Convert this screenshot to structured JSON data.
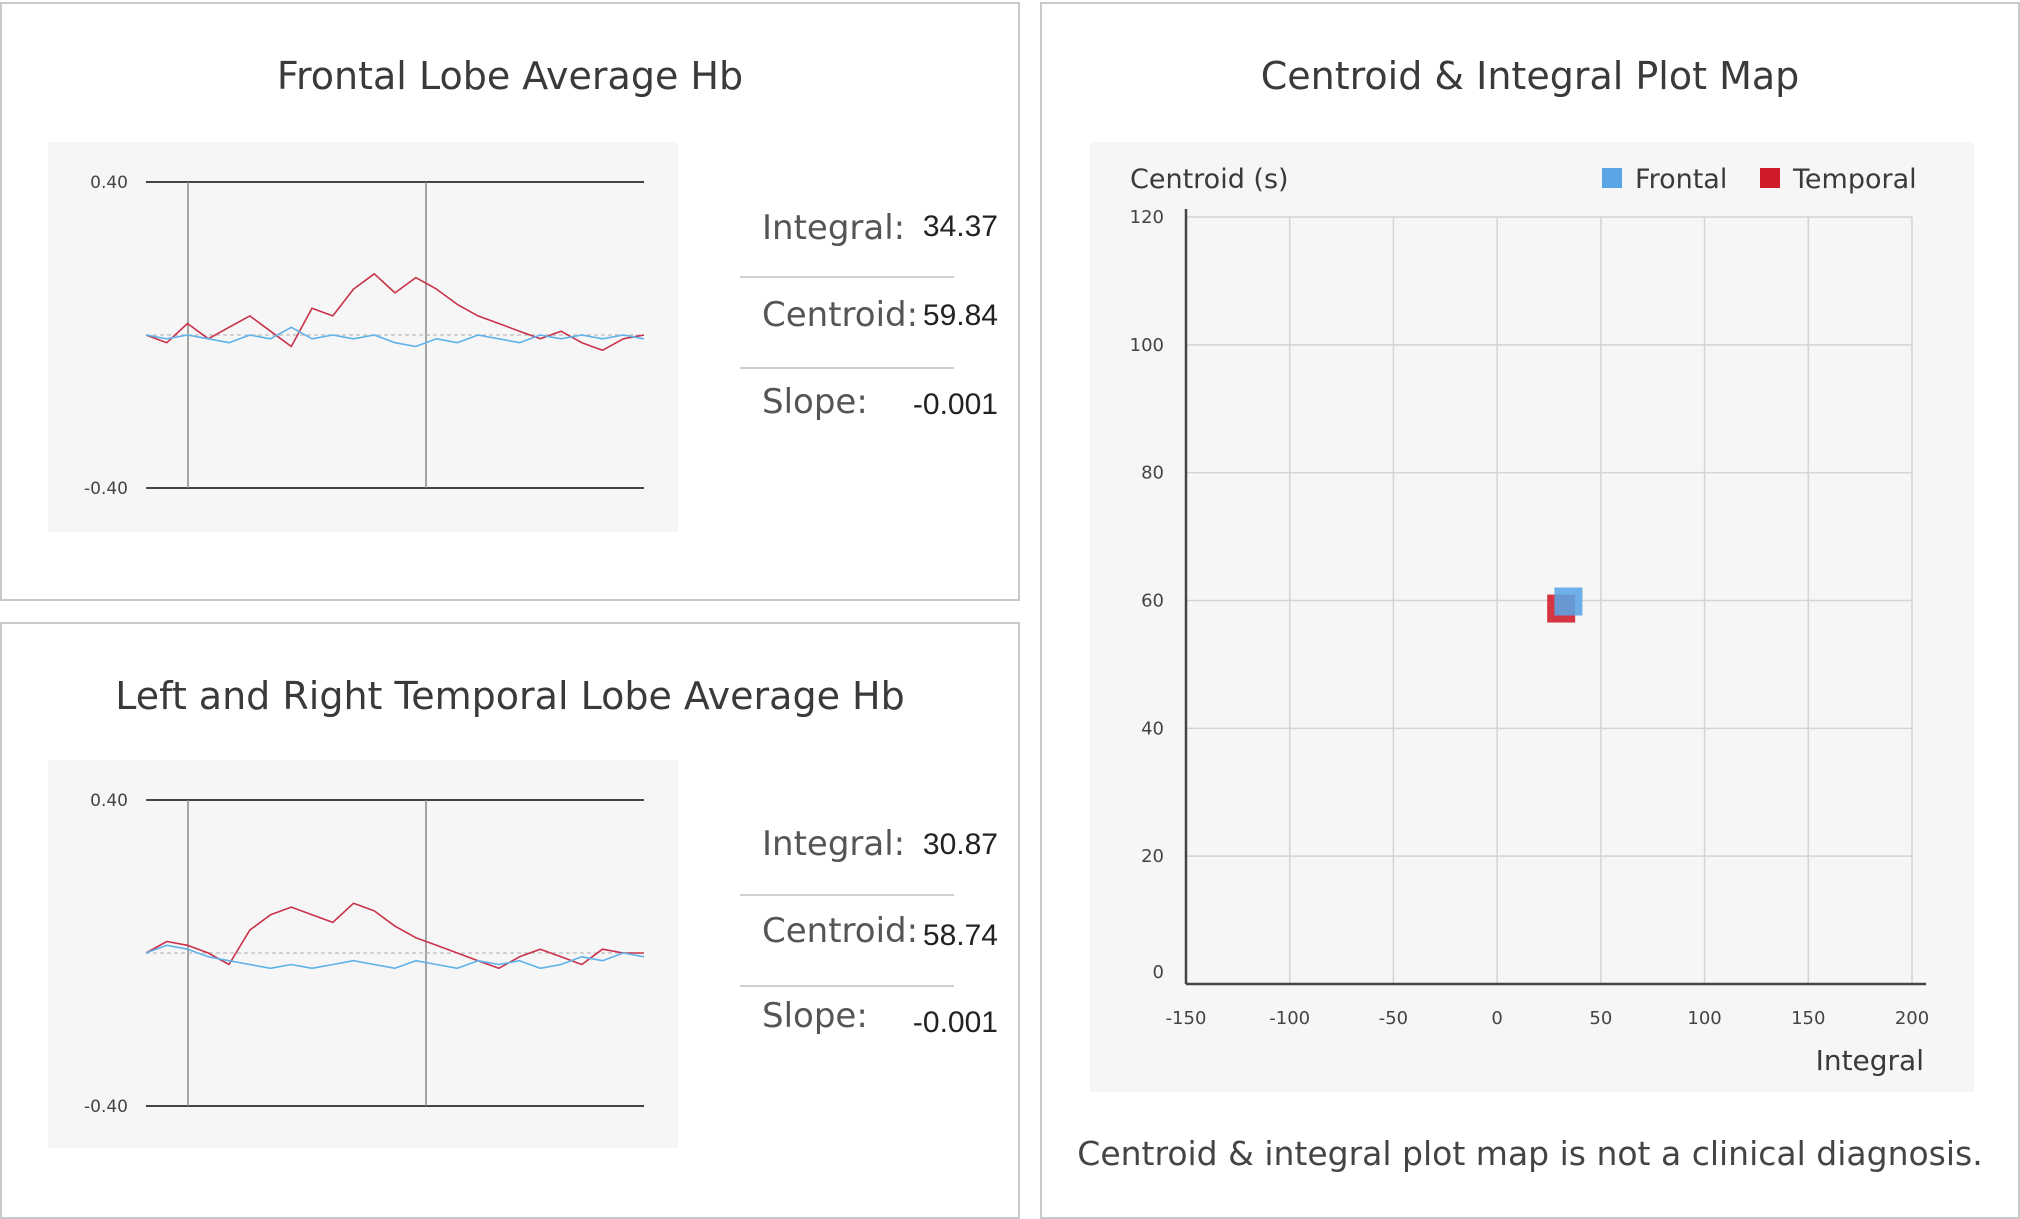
{
  "frontal": {
    "title": "Frontal Lobe Average Hb",
    "stats": [
      {
        "label": "Integral:",
        "value": "34.37"
      },
      {
        "label": "Centroid:",
        "value": "59.84"
      },
      {
        "label": "Slope:",
        "value": "-0.001"
      }
    ]
  },
  "temporal": {
    "title": "Left and Right Temporal Lobe Average Hb",
    "stats": [
      {
        "label": "Integral:",
        "value": "30.87"
      },
      {
        "label": "Centroid:",
        "value": "58.74"
      },
      {
        "label": "Slope:",
        "value": "-0.001"
      }
    ]
  },
  "map": {
    "title": "Centroid & Integral Plot Map",
    "disclaimer": "Centroid & integral plot map is not a clinical diagnosis."
  },
  "colors": {
    "frontal": "#5aa5e6",
    "temporal": "#d11a2a",
    "signal_red": "#c8324a",
    "signal_blue": "#5fb2ea"
  },
  "chart_data": [
    {
      "type": "line",
      "ylim": [
        -0.4,
        0.4
      ],
      "yticks": [
        "0.40",
        "-0.40"
      ],
      "series": [
        {
          "color": "#c8324a",
          "values": [
            0.0,
            -0.02,
            0.03,
            -0.01,
            0.02,
            0.05,
            0.01,
            -0.03,
            0.07,
            0.05,
            0.12,
            0.16,
            0.11,
            0.15,
            0.12,
            0.08,
            0.05,
            0.03,
            0.01,
            -0.01,
            0.01,
            -0.02,
            -0.04,
            -0.01,
            0.0
          ]
        },
        {
          "color": "#5fb2ea",
          "values": [
            0.0,
            -0.01,
            0.0,
            -0.01,
            -0.02,
            0.0,
            -0.01,
            0.02,
            -0.01,
            0.0,
            -0.01,
            0.0,
            -0.02,
            -0.03,
            -0.01,
            -0.02,
            0.0,
            -0.01,
            -0.02,
            0.0,
            -0.01,
            0.0,
            -0.01,
            0.0,
            -0.01
          ]
        }
      ]
    },
    {
      "type": "line",
      "ylim": [
        -0.4,
        0.4
      ],
      "yticks": [
        "0.40",
        "-0.40"
      ],
      "series": [
        {
          "color": "#c8324a",
          "values": [
            0.0,
            0.03,
            0.02,
            0.0,
            -0.03,
            0.06,
            0.1,
            0.12,
            0.1,
            0.08,
            0.13,
            0.11,
            0.07,
            0.04,
            0.02,
            0.0,
            -0.02,
            -0.04,
            -0.01,
            0.01,
            -0.01,
            -0.03,
            0.01,
            0.0,
            0.0
          ]
        },
        {
          "color": "#5fb2ea",
          "values": [
            0.0,
            0.02,
            0.01,
            -0.01,
            -0.02,
            -0.03,
            -0.04,
            -0.03,
            -0.04,
            -0.03,
            -0.02,
            -0.03,
            -0.04,
            -0.02,
            -0.03,
            -0.04,
            -0.02,
            -0.03,
            -0.02,
            -0.04,
            -0.03,
            -0.01,
            -0.02,
            0.0,
            -0.01
          ]
        }
      ]
    },
    {
      "type": "scatter",
      "ylabel": "Centroid (s)",
      "xlabel": "Integral",
      "xlim": [
        -150,
        200
      ],
      "ylim": [
        0,
        120
      ],
      "xticks": [
        -150,
        -100,
        -50,
        0,
        50,
        100,
        150,
        200
      ],
      "yticks": [
        0,
        20,
        40,
        60,
        80,
        100,
        120
      ],
      "grid": true,
      "legend": "top-right",
      "series": [
        {
          "name": "Temporal",
          "color": "#d11a2a",
          "points": [
            {
              "x": 30.87,
              "y": 58.74
            }
          ]
        },
        {
          "name": "Frontal",
          "color": "#5aa5e6",
          "points": [
            {
              "x": 34.37,
              "y": 59.84
            }
          ]
        }
      ]
    }
  ]
}
